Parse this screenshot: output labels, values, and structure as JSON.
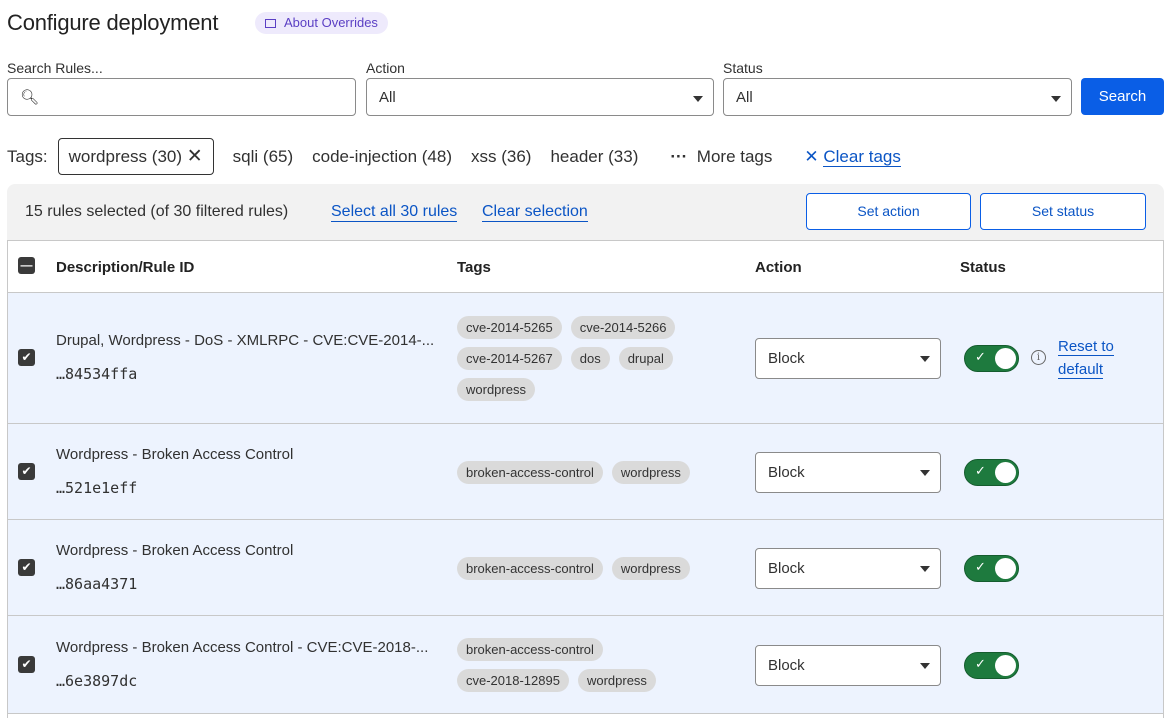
{
  "header": {
    "title": "Configure deployment",
    "about_label": "About Overrides"
  },
  "filters": {
    "search_label": "Search Rules...",
    "search_value": "",
    "search_placeholder": "",
    "action_label": "Action",
    "action_value": "All",
    "status_label": "Status",
    "status_value": "All",
    "search_button": "Search"
  },
  "tags_filter": {
    "label": "Tags:",
    "selected": "wordpress (30)",
    "others": [
      "sqli (65)",
      "code-injection (48)",
      "xss (36)",
      "header (33)"
    ],
    "more": "More tags",
    "clear": "Clear tags"
  },
  "selection": {
    "summary": "15 rules selected (of 30 filtered rules)",
    "select_all": "Select all 30 rules",
    "clear": "Clear selection",
    "set_action": "Set action",
    "set_status": "Set status"
  },
  "table": {
    "columns": [
      "Description/Rule ID",
      "Tags",
      "Action",
      "Status"
    ],
    "rows": [
      {
        "description": "Drupal, Wordpress - DoS - XMLRPC - CVE:CVE-2014-...",
        "id": "…84534ffa",
        "tags": [
          "cve-2014-5265",
          "cve-2014-5266",
          "cve-2014-5267",
          "dos",
          "drupal",
          "wordpress"
        ],
        "action": "Block",
        "enabled": true,
        "checked": true,
        "reset": "Reset to default"
      },
      {
        "description": "Wordpress - Broken Access Control",
        "id": "…521e1eff",
        "tags": [
          "broken-access-control",
          "wordpress"
        ],
        "action": "Block",
        "enabled": true,
        "checked": true
      },
      {
        "description": "Wordpress - Broken Access Control",
        "id": "…86aa4371",
        "tags": [
          "broken-access-control",
          "wordpress"
        ],
        "action": "Block",
        "enabled": true,
        "checked": true
      },
      {
        "description": "Wordpress - Broken Access Control - CVE:CVE-2018-...",
        "id": "…6e3897dc",
        "tags": [
          "broken-access-control",
          "cve-2018-12895",
          "wordpress"
        ],
        "action": "Block",
        "enabled": true,
        "checked": true
      }
    ]
  },
  "colors": {
    "primary": "#0a5ee6",
    "toggle_on": "#1e7a3e",
    "row_selected": "#edf3fe"
  }
}
